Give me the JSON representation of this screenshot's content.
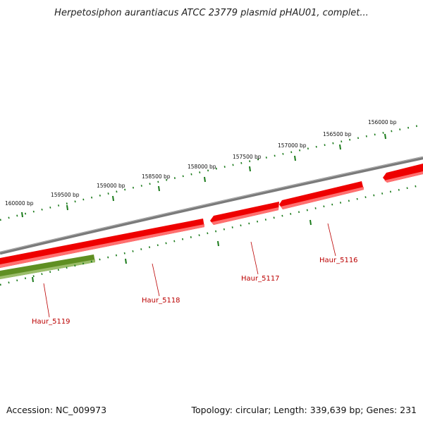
{
  "header": {
    "title": "Herpetosiphon aurantiacus ATCC 23779 plasmid pHAU01, complet..."
  },
  "footer": {
    "accession": "Accession: NC_009973",
    "summary": "Topology: circular; Length: 339,639 bp; Genes: 231"
  },
  "colors": {
    "backbone": "#7a7a7a",
    "gene_forward": "#ee0000",
    "gene_highlight": "#5f8f22",
    "scale_ticks": "#1a7a1a",
    "label_text": "#bb0000"
  },
  "scale_ticks": [
    {
      "label": "160000 bp"
    },
    {
      "label": "159500 bp"
    },
    {
      "label": "159000 bp"
    },
    {
      "label": "158500 bp"
    },
    {
      "label": "158000 bp"
    },
    {
      "label": "157500 bp"
    },
    {
      "label": "157000 bp"
    },
    {
      "label": "156500 bp"
    },
    {
      "label": "156000 bp"
    }
  ],
  "genes": [
    {
      "name": "Haur_5119"
    },
    {
      "name": "Haur_5118"
    },
    {
      "name": "Haur_5117"
    },
    {
      "name": "Haur_5116"
    }
  ]
}
